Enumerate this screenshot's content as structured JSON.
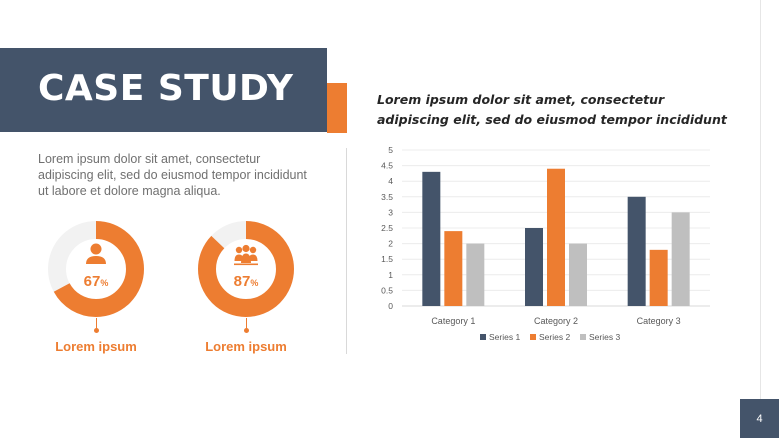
{
  "slide": {
    "title": "CASE STUDY",
    "intro_text": "Lorem ipsum dolor sit amet, consectetur adipiscing elit, sed do eiusmod tempor incididunt ut labore et dolore magna aliqua.",
    "page_number": "4",
    "colors": {
      "navy": "#44546a",
      "orange": "#ed7d31",
      "gray": "#bfbfbf",
      "track": "#f2f2f2"
    }
  },
  "stats": [
    {
      "icon": "person-icon",
      "value": 67,
      "number": "67",
      "unit": "%",
      "label": "Lorem ipsum"
    },
    {
      "icon": "group-icon",
      "value": 87,
      "number": "87",
      "unit": "%",
      "label": "Lorem ipsum"
    }
  ],
  "chart_data": {
    "type": "bar",
    "title": "Lorem ipsum dolor sit amet, consectetur adipiscing elit, sed do eiusmod tempor incididunt",
    "categories": [
      "Category 1",
      "Category 2",
      "Category 3"
    ],
    "series": [
      {
        "name": "Series 1",
        "color": "#44546a",
        "values": [
          4.3,
          2.5,
          3.5
        ]
      },
      {
        "name": "Series 2",
        "color": "#ed7d31",
        "values": [
          2.4,
          4.4,
          1.8
        ]
      },
      {
        "name": "Series 3",
        "color": "#bfbfbf",
        "values": [
          2.0,
          2.0,
          3.0
        ]
      }
    ],
    "ylim": [
      0,
      5
    ],
    "yticks": [
      "0",
      "0.5",
      "1",
      "1.5",
      "2",
      "2.5",
      "3",
      "3.5",
      "4",
      "4.5",
      "5"
    ],
    "grid": true,
    "legend_position": "bottom"
  }
}
